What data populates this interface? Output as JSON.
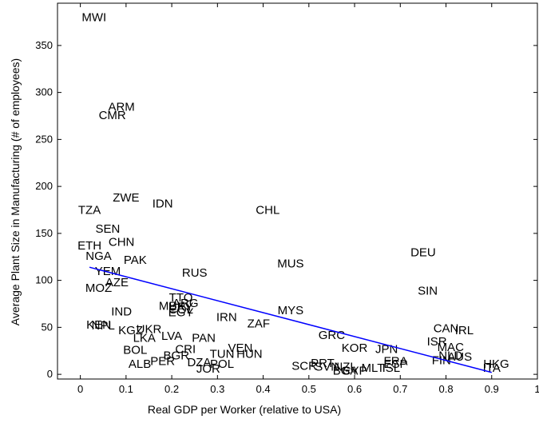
{
  "chart_data": {
    "type": "scatter",
    "title": "",
    "xlabel": "Real GDP per Worker (relative to USA)",
    "ylabel": "Average Plant Size in Manufacturing (# of employees)",
    "xlim": [
      -0.05,
      1.0
    ],
    "ylim": [
      -5,
      395
    ],
    "xticks": [
      0,
      0.1,
      0.2,
      0.3,
      0.4,
      0.5,
      0.6,
      0.7,
      0.8,
      0.9,
      1
    ],
    "yticks": [
      0,
      50,
      100,
      150,
      200,
      250,
      300,
      350
    ],
    "xtick_labels": [
      "0",
      "0.1",
      "0.2",
      "0.3",
      "0.4",
      "0.5",
      "0.6",
      "0.7",
      "0.8",
      "0.9",
      "1"
    ],
    "ytick_labels": [
      "0",
      "50",
      "100",
      "150",
      "200",
      "250",
      "300",
      "350"
    ],
    "grid": false,
    "points": [
      {
        "label": "MWI",
        "x": 0.03,
        "y": 380
      },
      {
        "label": "ARM",
        "x": 0.09,
        "y": 285
      },
      {
        "label": "CMR",
        "x": 0.07,
        "y": 276
      },
      {
        "label": "ZWE",
        "x": 0.1,
        "y": 188
      },
      {
        "label": "IDN",
        "x": 0.18,
        "y": 182
      },
      {
        "label": "TZA",
        "x": 0.02,
        "y": 175
      },
      {
        "label": "CHL",
        "x": 0.41,
        "y": 175
      },
      {
        "label": "SEN",
        "x": 0.06,
        "y": 155
      },
      {
        "label": "CHN",
        "x": 0.09,
        "y": 141
      },
      {
        "label": "ETH",
        "x": 0.02,
        "y": 137
      },
      {
        "label": "DEU",
        "x": 0.75,
        "y": 130
      },
      {
        "label": "NGA",
        "x": 0.04,
        "y": 126
      },
      {
        "label": "PAK",
        "x": 0.12,
        "y": 122
      },
      {
        "label": "MUS",
        "x": 0.46,
        "y": 118
      },
      {
        "label": "YEM",
        "x": 0.06,
        "y": 110
      },
      {
        "label": "RUS",
        "x": 0.25,
        "y": 108
      },
      {
        "label": "AZE",
        "x": 0.08,
        "y": 98
      },
      {
        "label": "MOZ",
        "x": 0.04,
        "y": 92
      },
      {
        "label": "SIN",
        "x": 0.76,
        "y": 89
      },
      {
        "label": "TTO",
        "x": 0.22,
        "y": 82
      },
      {
        "label": "ARG",
        "x": 0.23,
        "y": 76
      },
      {
        "label": "MEX",
        "x": 0.2,
        "y": 73
      },
      {
        "label": "URY",
        "x": 0.22,
        "y": 72
      },
      {
        "label": "COL",
        "x": 0.22,
        "y": 69
      },
      {
        "label": "IND",
        "x": 0.09,
        "y": 67
      },
      {
        "label": "MYS",
        "x": 0.46,
        "y": 68
      },
      {
        "label": "EGY",
        "x": 0.22,
        "y": 66
      },
      {
        "label": "IRN",
        "x": 0.32,
        "y": 61
      },
      {
        "label": "ZAF",
        "x": 0.39,
        "y": 54
      },
      {
        "label": "KEN",
        "x": 0.04,
        "y": 53
      },
      {
        "label": "NPL",
        "x": 0.05,
        "y": 52
      },
      {
        "label": "KGZ",
        "x": 0.11,
        "y": 47
      },
      {
        "label": "UKR",
        "x": 0.15,
        "y": 48
      },
      {
        "label": "CAN",
        "x": 0.8,
        "y": 49
      },
      {
        "label": "IRL",
        "x": 0.84,
        "y": 47
      },
      {
        "label": "GRC",
        "x": 0.55,
        "y": 42
      },
      {
        "label": "LKA",
        "x": 0.14,
        "y": 39
      },
      {
        "label": "LVA",
        "x": 0.2,
        "y": 41
      },
      {
        "label": "PAN",
        "x": 0.27,
        "y": 39
      },
      {
        "label": "ISR",
        "x": 0.78,
        "y": 35
      },
      {
        "label": "KOR",
        "x": 0.6,
        "y": 28
      },
      {
        "label": "JPN",
        "x": 0.67,
        "y": 27
      },
      {
        "label": "MAC",
        "x": 0.81,
        "y": 29
      },
      {
        "label": "VEN",
        "x": 0.35,
        "y": 28
      },
      {
        "label": "BOL",
        "x": 0.12,
        "y": 26
      },
      {
        "label": "CRI",
        "x": 0.23,
        "y": 27
      },
      {
        "label": "TUN",
        "x": 0.31,
        "y": 22
      },
      {
        "label": "HUN",
        "x": 0.37,
        "y": 22
      },
      {
        "label": "BGR",
        "x": 0.21,
        "y": 20
      },
      {
        "label": "NLD",
        "x": 0.81,
        "y": 20
      },
      {
        "label": "AUS",
        "x": 0.83,
        "y": 19
      },
      {
        "label": "PER",
        "x": 0.18,
        "y": 14
      },
      {
        "label": "DZA",
        "x": 0.26,
        "y": 13
      },
      {
        "label": "POL",
        "x": 0.31,
        "y": 11
      },
      {
        "label": "FIN",
        "x": 0.79,
        "y": 15
      },
      {
        "label": "ALB",
        "x": 0.13,
        "y": 11
      },
      {
        "label": "PRT",
        "x": 0.53,
        "y": 12
      },
      {
        "label": "FRA",
        "x": 0.69,
        "y": 14
      },
      {
        "label": "ESP",
        "x": 0.69,
        "y": 11
      },
      {
        "label": "HKG",
        "x": 0.91,
        "y": 11
      },
      {
        "label": "SCR",
        "x": 0.49,
        "y": 9
      },
      {
        "label": "NZL",
        "x": 0.58,
        "y": 8
      },
      {
        "label": "SVN",
        "x": 0.54,
        "y": 8
      },
      {
        "label": "ISL",
        "x": 0.68,
        "y": 7
      },
      {
        "label": "MLT",
        "x": 0.64,
        "y": 7
      },
      {
        "label": "BGA",
        "x": 0.58,
        "y": 4
      },
      {
        "label": "CYP",
        "x": 0.6,
        "y": 4
      },
      {
        "label": "ITA",
        "x": 0.9,
        "y": 7
      },
      {
        "label": "JOR",
        "x": 0.28,
        "y": 6
      }
    ],
    "fit_line": {
      "x": [
        0.02,
        0.9
      ],
      "y": [
        114,
        2
      ],
      "color": "#0000ff"
    }
  }
}
